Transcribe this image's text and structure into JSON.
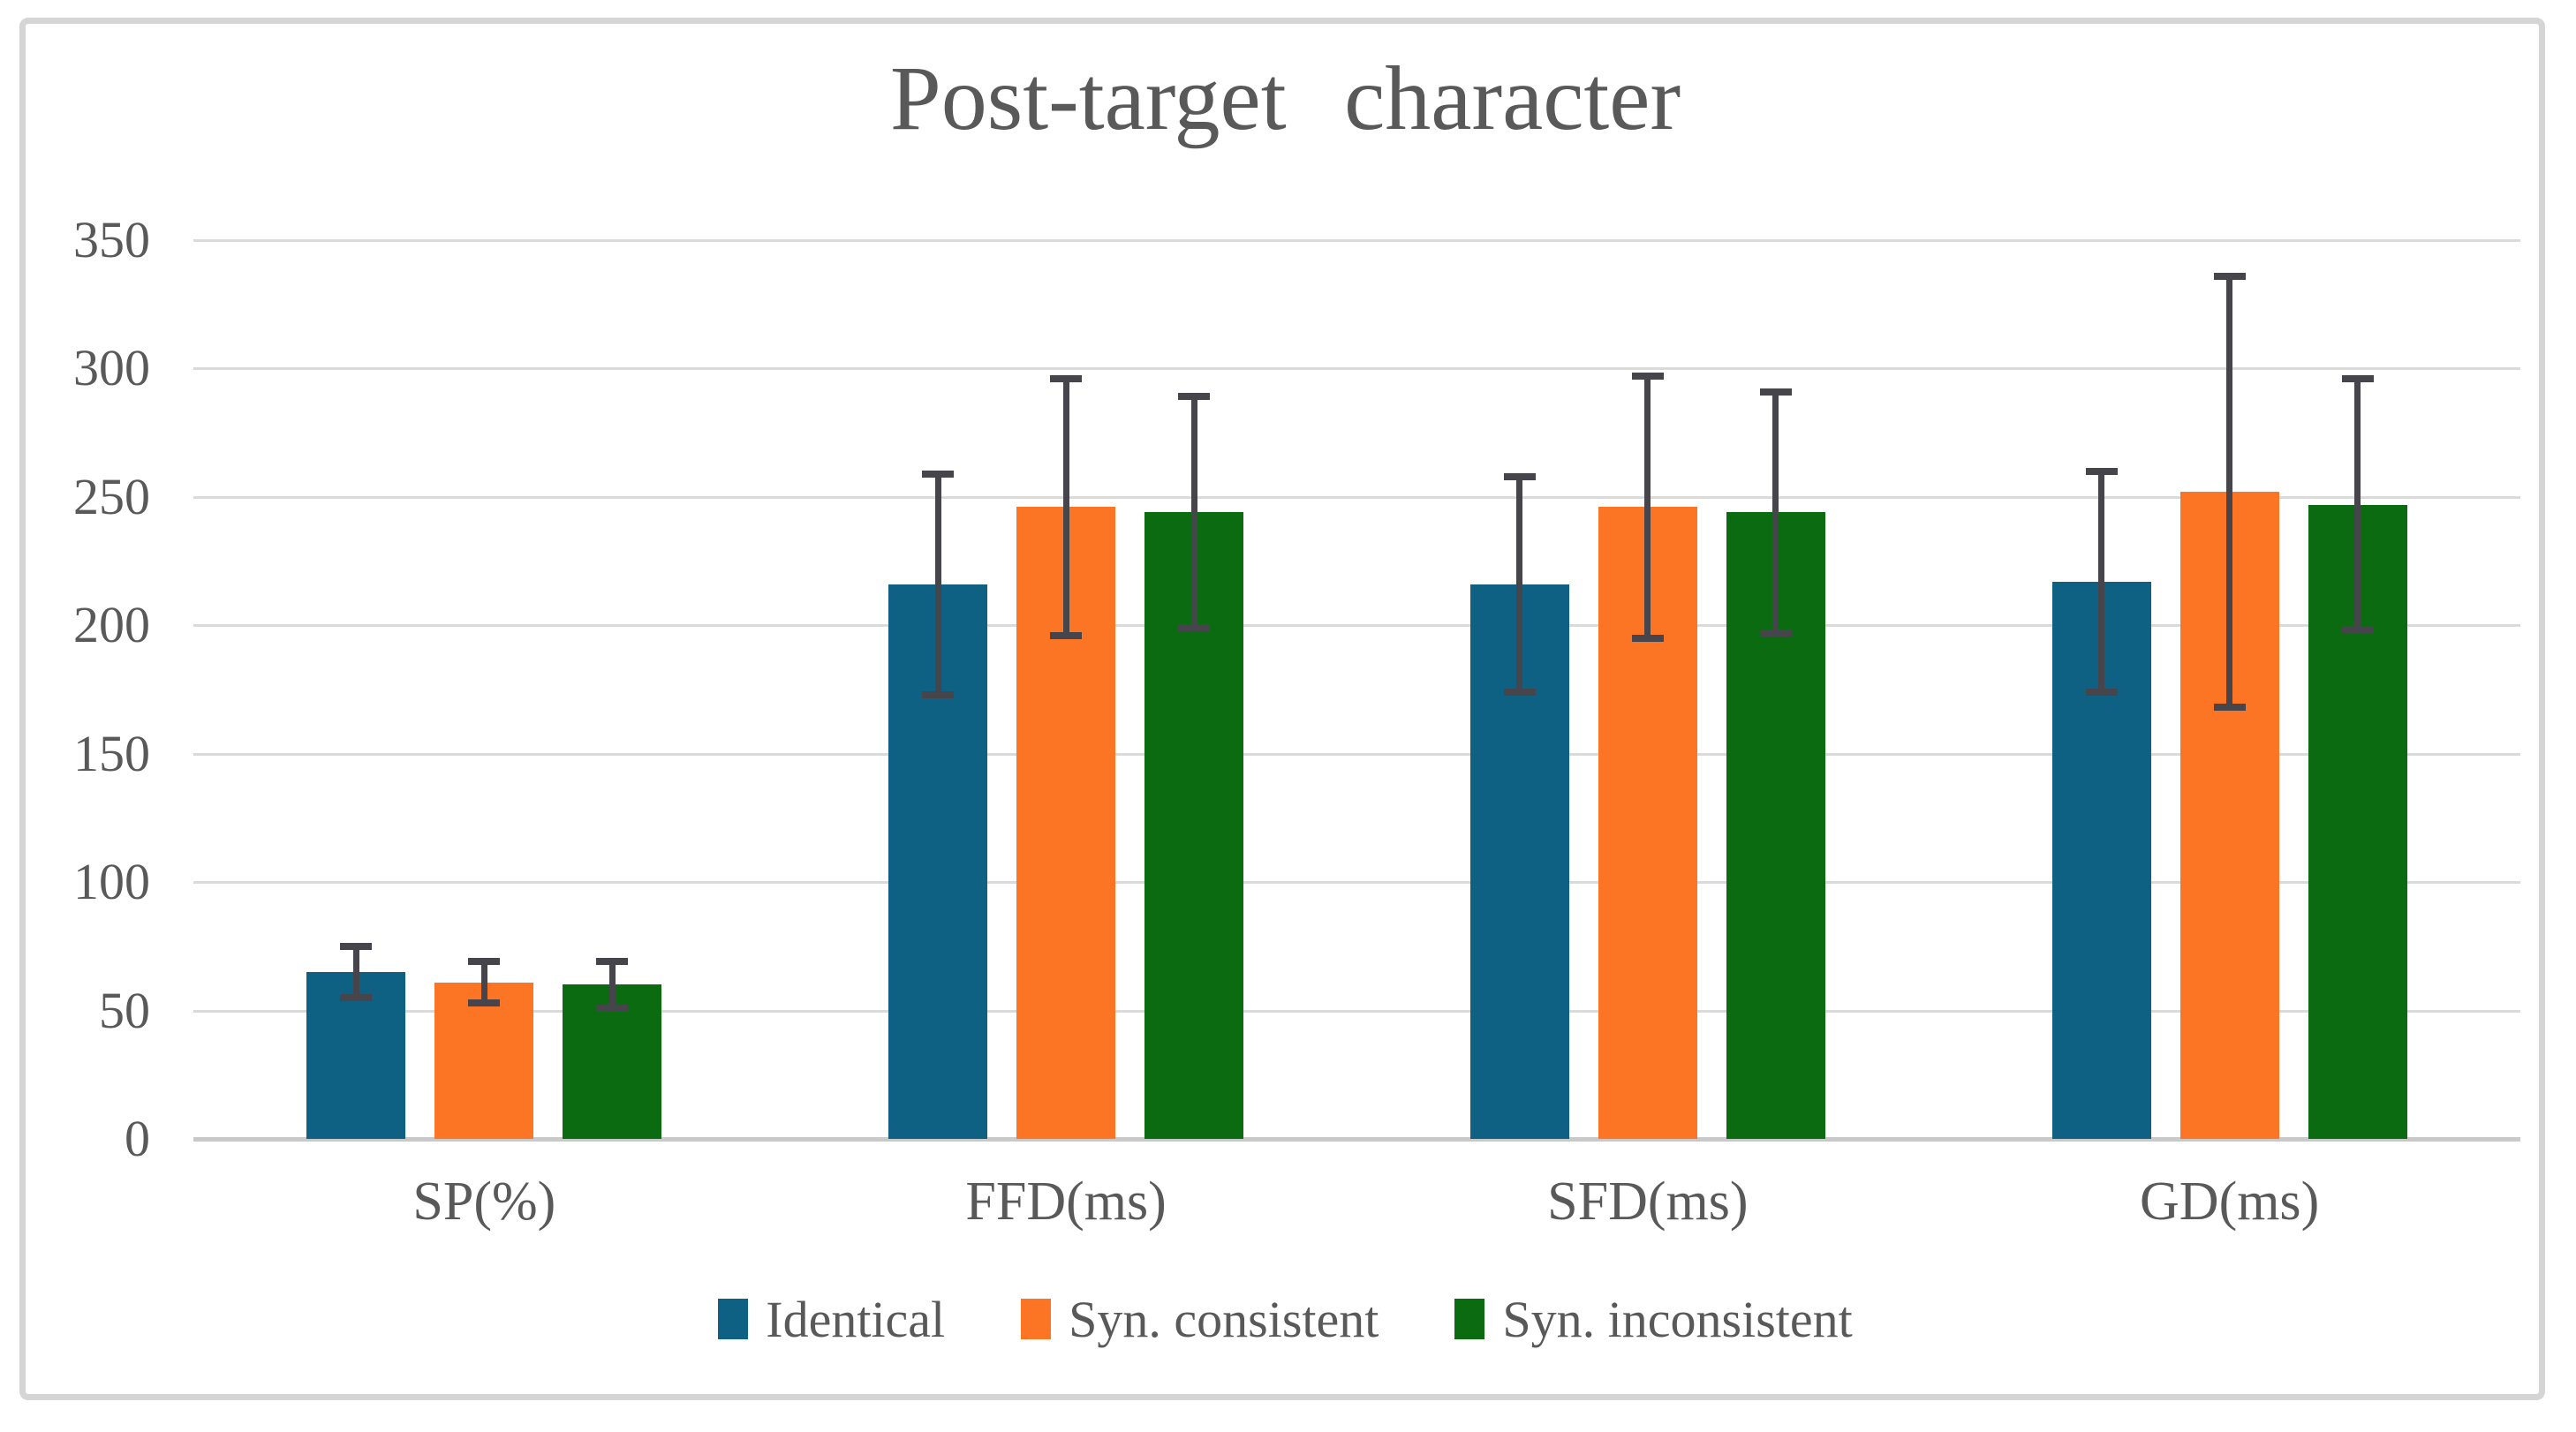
{
  "chart_data": {
    "type": "bar",
    "title": "Post-target character",
    "categories": [
      "SP(%)",
      "FFD(ms)",
      "SFD(ms)",
      "GD(ms)"
    ],
    "series": [
      {
        "name": "Identical",
        "color": "#0E6182",
        "values": [
          65,
          216,
          216,
          217
        ],
        "errors": [
          10,
          43,
          42,
          43
        ]
      },
      {
        "name": "Syn. consistent",
        "color": "#FB7524",
        "values": [
          61,
          246,
          246,
          252
        ],
        "errors": [
          8,
          50,
          51,
          84
        ]
      },
      {
        "name": "Syn. inconsistent",
        "color": "#0A6B11",
        "values": [
          60,
          244,
          244,
          247
        ],
        "errors": [
          9,
          45,
          47,
          49
        ]
      }
    ],
    "ylim": [
      0,
      350
    ],
    "ytick_step": 50,
    "ytick_labels": [
      "0",
      "50",
      "100",
      "150",
      "200",
      "250",
      "300",
      "350"
    ],
    "grid": true,
    "legend_position": "bottom",
    "colors": {
      "text": "#595959",
      "grid": "#DADADA",
      "axis_line": "#C9C9C9",
      "error_bar": "#45454B",
      "frame_border": "#D5D5D5",
      "background": "#FFFFFF"
    }
  }
}
